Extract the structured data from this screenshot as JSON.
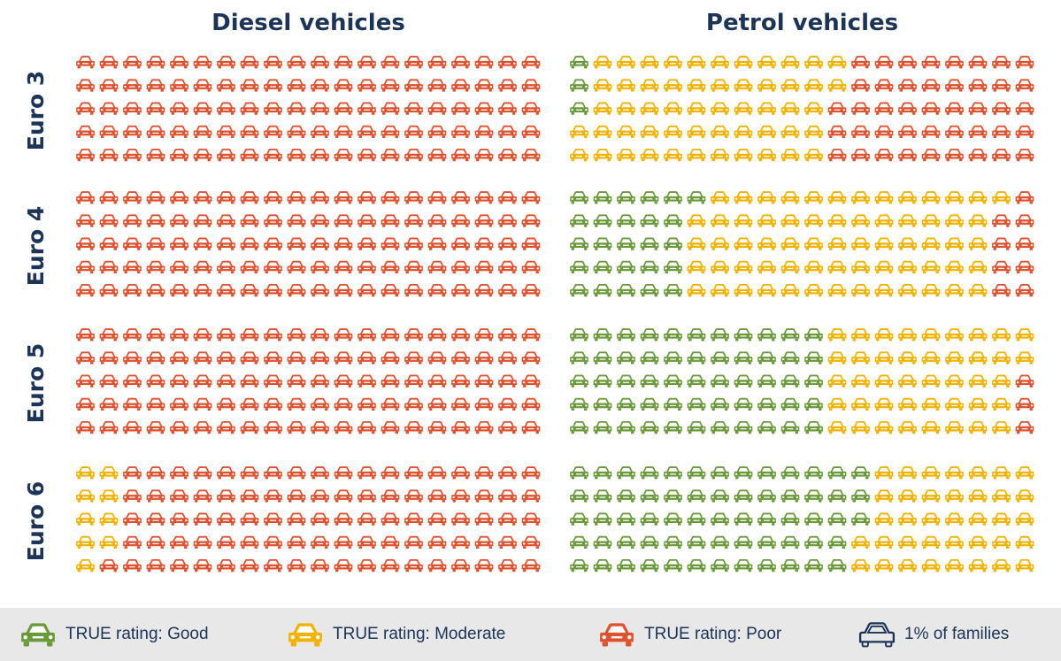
{
  "colors": {
    "Good": "#6a9a3a",
    "Moderate": "#f2b200",
    "Poor": "#e0512e",
    "outline": "#1b3458"
  },
  "chart_data": {
    "type": "pictogram",
    "unit": "1% of families",
    "columns": [
      "Diesel vehicles",
      "Petrol vehicles"
    ],
    "rows": [
      "Euro 3",
      "Euro 4",
      "Euro 5",
      "Euro 6"
    ],
    "categories": [
      "Good",
      "Moderate",
      "Poor"
    ],
    "panels": [
      {
        "fuel": "Diesel vehicles",
        "standard": "Euro 3",
        "Good": 0,
        "Moderate": 0,
        "Poor": 100
      },
      {
        "fuel": "Diesel vehicles",
        "standard": "Euro 4",
        "Good": 0,
        "Moderate": 0,
        "Poor": 100
      },
      {
        "fuel": "Diesel vehicles",
        "standard": "Euro 5",
        "Good": 0,
        "Moderate": 0,
        "Poor": 100
      },
      {
        "fuel": "Diesel vehicles",
        "standard": "Euro 6",
        "Good": 0,
        "Moderate": 9,
        "Poor": 91
      },
      {
        "fuel": "Petrol vehicles",
        "standard": "Euro 3",
        "Good": 3,
        "Moderate": 54,
        "Poor": 43
      },
      {
        "fuel": "Petrol vehicles",
        "standard": "Euro 4",
        "Good": 26,
        "Moderate": 65,
        "Poor": 9
      },
      {
        "fuel": "Petrol vehicles",
        "standard": "Euro 5",
        "Good": 55,
        "Moderate": 42,
        "Poor": 3
      },
      {
        "fuel": "Petrol vehicles",
        "standard": "Euro 6",
        "Good": 63,
        "Moderate": 37,
        "Poor": 0
      }
    ]
  },
  "legend": [
    {
      "label": "TRUE rating: Good",
      "icon": "car-icon-good",
      "color": "Good"
    },
    {
      "label": "TRUE rating: Moderate",
      "icon": "car-icon-moderate",
      "color": "Moderate"
    },
    {
      "label": "TRUE rating: Poor",
      "icon": "car-icon-poor",
      "color": "Poor"
    },
    {
      "label": "1% of families",
      "icon": "car-outline-icon",
      "color": "outline"
    }
  ]
}
